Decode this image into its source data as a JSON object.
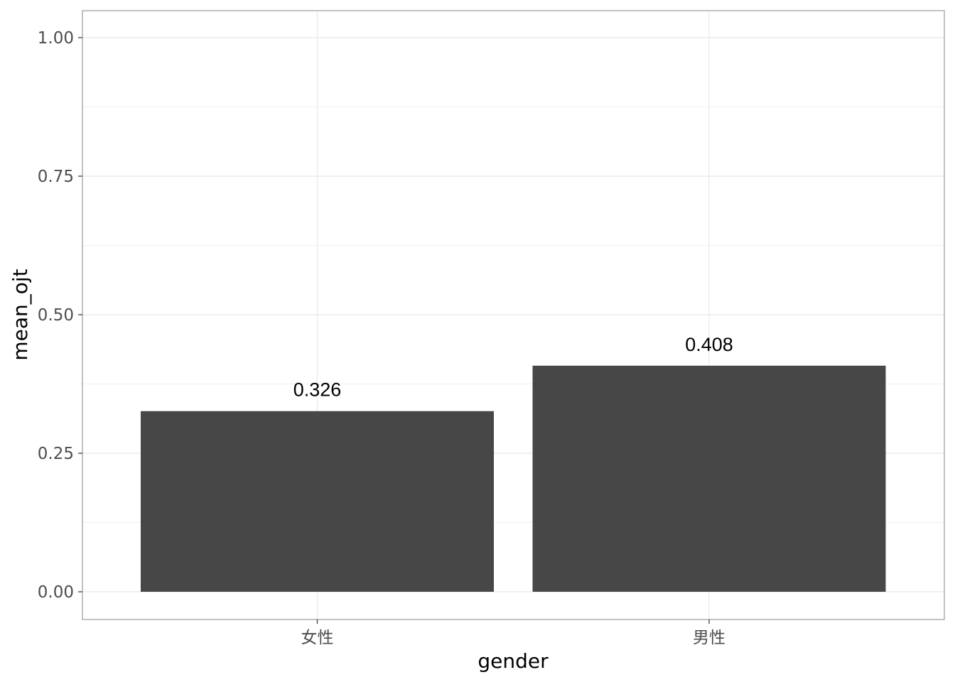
{
  "chart_data": {
    "type": "bar",
    "categories": [
      "女性",
      "男性"
    ],
    "values": [
      0.326,
      0.408
    ],
    "data_labels": [
      "0.326",
      "0.408"
    ],
    "xlabel": "gender",
    "ylabel": "mean_ojt",
    "ylim": [
      0,
      1
    ],
    "yticks": [
      "0.00",
      "0.25",
      "0.50",
      "0.75",
      "1.00"
    ],
    "grid": true,
    "legend": "none",
    "colors": {
      "bar": "#474747",
      "panel_border": "#9a9a9a",
      "grid": "#ebebeb",
      "tick_text": "#4d4d4d"
    }
  }
}
